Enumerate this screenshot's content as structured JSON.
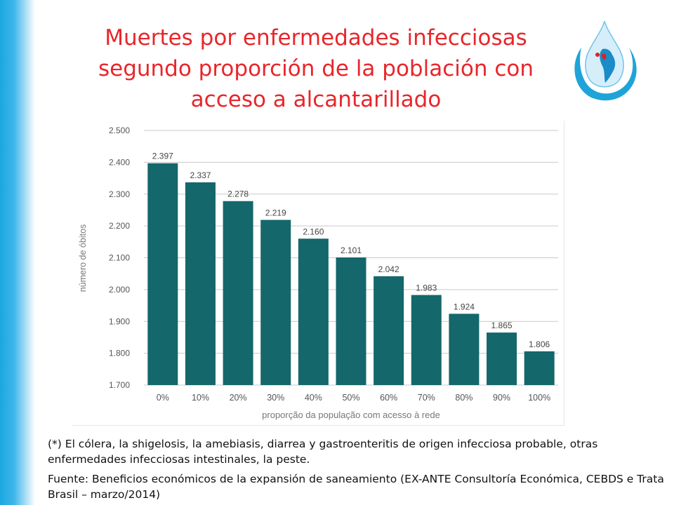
{
  "title": {
    "line1": "Muertes por enfermedades infecciosas",
    "line2": "segundo proporción de la población con",
    "line3": "acceso a alcantarillado"
  },
  "logo": {
    "icon": "water-drop-americas-logo",
    "colors": {
      "blue": "#1ea4d8",
      "red": "#d9232a"
    }
  },
  "colors": {
    "title": "#e8262b",
    "bar": "#14676b",
    "band": "#1aa7e0"
  },
  "chart_data": {
    "type": "bar",
    "categories": [
      "0%",
      "10%",
      "20%",
      "30%",
      "40%",
      "50%",
      "60%",
      "70%",
      "80%",
      "90%",
      "100%"
    ],
    "values": [
      2397,
      2337,
      2278,
      2219,
      2160,
      2101,
      2042,
      1983,
      1924,
      1865,
      1806
    ],
    "data_labels": [
      "2.397",
      "2.337",
      "2.278",
      "2.219",
      "2.160",
      "2.101",
      "2.042",
      "1.983",
      "1.924",
      "1.865",
      "1.806"
    ],
    "yticks": [
      1700,
      1800,
      1900,
      2000,
      2100,
      2200,
      2300,
      2400,
      2500
    ],
    "ytick_labels": [
      "1.700",
      "1.800",
      "1.900",
      "2.000",
      "2.100",
      "2.200",
      "2.300",
      "2.400",
      "2.500"
    ],
    "ylim": [
      1700,
      2500
    ],
    "xlabel": "proporção da população com acesso à rede",
    "ylabel": "número de óbitos",
    "grid": true
  },
  "footnote": "(*) El cólera, la shigelosis, la amebiasis, diarrea y gastroenteritis de origen infecciosa probable, otras enfermedades infecciosas intestinales, la peste.",
  "source": "Fuente: Beneficios económicos de la expansión de saneamiento (EX-ANTE Consultoría Económica, CEBDS e Trata Brasil – marzo/2014)"
}
